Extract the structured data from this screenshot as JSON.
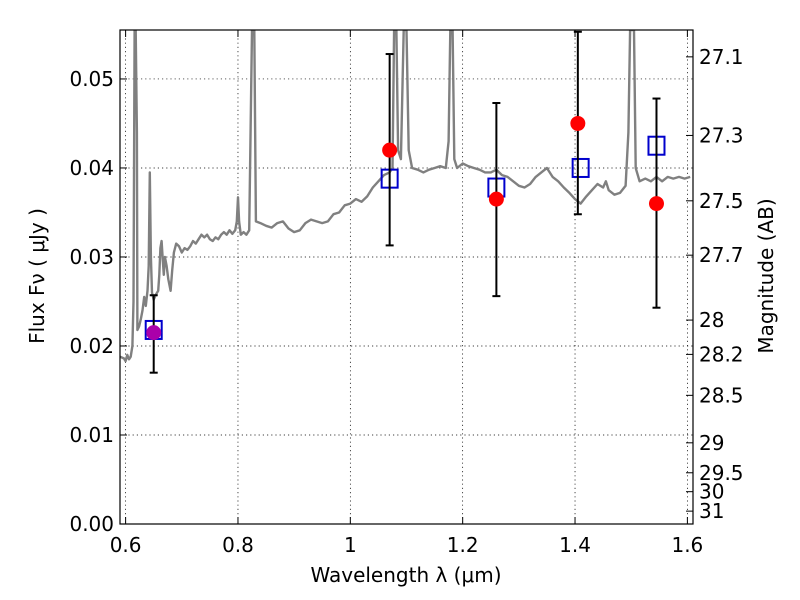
{
  "chart_data": {
    "type": "scatter",
    "title": "",
    "xlabel": "Wavelength  λ (μm)",
    "ylabel": "Flux  Fν  ( μJy )",
    "ylabel_right": "Magnitude (AB)",
    "xlim": [
      0.59,
      1.61
    ],
    "ylim": [
      0.0,
      0.0555
    ],
    "grid": true,
    "x_ticks": [
      {
        "value": 0.6,
        "label": "0.6"
      },
      {
        "value": 0.8,
        "label": "0.8"
      },
      {
        "value": 1.0,
        "label": "1"
      },
      {
        "value": 1.2,
        "label": "1.2"
      },
      {
        "value": 1.4,
        "label": "1.4"
      },
      {
        "value": 1.6,
        "label": "1.6"
      }
    ],
    "y_ticks": [
      {
        "value": 0.0,
        "label": "0.00"
      },
      {
        "value": 0.01,
        "label": "0.01"
      },
      {
        "value": 0.02,
        "label": "0.02"
      },
      {
        "value": 0.03,
        "label": "0.03"
      },
      {
        "value": 0.04,
        "label": "0.04"
      },
      {
        "value": 0.05,
        "label": "0.05"
      }
    ],
    "right_ticks": [
      {
        "mag": 27.1,
        "label": "27.1"
      },
      {
        "mag": 27.3,
        "label": "27.3"
      },
      {
        "mag": 27.5,
        "label": "27.5"
      },
      {
        "mag": 27.7,
        "label": "27.7"
      },
      {
        "mag": 28.0,
        "label": "28"
      },
      {
        "mag": 28.2,
        "label": "28.2"
      },
      {
        "mag": 28.5,
        "label": "28.5"
      },
      {
        "mag": 29.0,
        "label": "29"
      },
      {
        "mag": 29.5,
        "label": "29.5"
      },
      {
        "mag": 30.0,
        "label": "30"
      },
      {
        "mag": 31.0,
        "label": "31"
      }
    ],
    "model_spectrum": {
      "color": "#808080",
      "points": [
        [
          0.59,
          0.0188
        ],
        [
          0.597,
          0.0186
        ],
        [
          0.6,
          0.0183
        ],
        [
          0.603,
          0.019
        ],
        [
          0.606,
          0.0185
        ],
        [
          0.609,
          0.0188
        ],
        [
          0.612,
          0.02
        ],
        [
          0.614,
          0.025
        ],
        [
          0.616,
          0.0555
        ],
        [
          0.618,
          0.0555
        ],
        [
          0.62,
          0.044
        ],
        [
          0.621,
          0.0218
        ],
        [
          0.624,
          0.0222
        ],
        [
          0.627,
          0.023
        ],
        [
          0.63,
          0.024
        ],
        [
          0.633,
          0.0255
        ],
        [
          0.636,
          0.0245
        ],
        [
          0.639,
          0.0262
        ],
        [
          0.641,
          0.029
        ],
        [
          0.643,
          0.0395
        ],
        [
          0.645,
          0.03
        ],
        [
          0.647,
          0.026
        ],
        [
          0.65,
          0.0252
        ],
        [
          0.654,
          0.0258
        ],
        [
          0.658,
          0.0262
        ],
        [
          0.66,
          0.028
        ],
        [
          0.662,
          0.031
        ],
        [
          0.664,
          0.0318
        ],
        [
          0.666,
          0.0298
        ],
        [
          0.668,
          0.028
        ],
        [
          0.67,
          0.03
        ],
        [
          0.673,
          0.029
        ],
        [
          0.676,
          0.0275
        ],
        [
          0.68,
          0.0262
        ],
        [
          0.683,
          0.0285
        ],
        [
          0.686,
          0.0305
        ],
        [
          0.69,
          0.0315
        ],
        [
          0.695,
          0.0312
        ],
        [
          0.7,
          0.0305
        ],
        [
          0.705,
          0.031
        ],
        [
          0.71,
          0.0308
        ],
        [
          0.715,
          0.0312
        ],
        [
          0.72,
          0.0318
        ],
        [
          0.725,
          0.0315
        ],
        [
          0.73,
          0.032
        ],
        [
          0.735,
          0.0325
        ],
        [
          0.74,
          0.0322
        ],
        [
          0.745,
          0.0325
        ],
        [
          0.75,
          0.032
        ],
        [
          0.755,
          0.0318
        ],
        [
          0.76,
          0.0322
        ],
        [
          0.765,
          0.032
        ],
        [
          0.77,
          0.0325
        ],
        [
          0.775,
          0.0328
        ],
        [
          0.78,
          0.0325
        ],
        [
          0.785,
          0.033
        ],
        [
          0.79,
          0.0326
        ],
        [
          0.795,
          0.033
        ],
        [
          0.798,
          0.034
        ],
        [
          0.8,
          0.0367
        ],
        [
          0.802,
          0.034
        ],
        [
          0.805,
          0.0325
        ],
        [
          0.81,
          0.0328
        ],
        [
          0.815,
          0.0325
        ],
        [
          0.82,
          0.033
        ],
        [
          0.825,
          0.0555
        ],
        [
          0.829,
          0.0555
        ],
        [
          0.832,
          0.034
        ],
        [
          0.84,
          0.0338
        ],
        [
          0.85,
          0.0335
        ],
        [
          0.86,
          0.0333
        ],
        [
          0.87,
          0.0338
        ],
        [
          0.88,
          0.034
        ],
        [
          0.89,
          0.0332
        ],
        [
          0.9,
          0.0328
        ],
        [
          0.91,
          0.033
        ],
        [
          0.92,
          0.0338
        ],
        [
          0.93,
          0.0342
        ],
        [
          0.94,
          0.034
        ],
        [
          0.95,
          0.0338
        ],
        [
          0.96,
          0.034
        ],
        [
          0.97,
          0.0348
        ],
        [
          0.98,
          0.035
        ],
        [
          0.99,
          0.0358
        ],
        [
          1.0,
          0.036
        ],
        [
          1.01,
          0.0365
        ],
        [
          1.02,
          0.0362
        ],
        [
          1.03,
          0.0368
        ],
        [
          1.04,
          0.0378
        ],
        [
          1.05,
          0.0385
        ],
        [
          1.06,
          0.0392
        ],
        [
          1.07,
          0.0395
        ],
        [
          1.075,
          0.04
        ],
        [
          1.078,
          0.0555
        ],
        [
          1.082,
          0.0555
        ],
        [
          1.085,
          0.042
        ],
        [
          1.09,
          0.041
        ],
        [
          1.095,
          0.0555
        ],
        [
          1.1,
          0.0555
        ],
        [
          1.104,
          0.042
        ],
        [
          1.11,
          0.04
        ],
        [
          1.12,
          0.0398
        ],
        [
          1.13,
          0.0395
        ],
        [
          1.14,
          0.0398
        ],
        [
          1.15,
          0.04
        ],
        [
          1.16,
          0.0402
        ],
        [
          1.17,
          0.04
        ],
        [
          1.175,
          0.043
        ],
        [
          1.178,
          0.0555
        ],
        [
          1.182,
          0.0555
        ],
        [
          1.185,
          0.041
        ],
        [
          1.19,
          0.04
        ],
        [
          1.2,
          0.0405
        ],
        [
          1.21,
          0.0402
        ],
        [
          1.22,
          0.04
        ],
        [
          1.23,
          0.0398
        ],
        [
          1.24,
          0.0395
        ],
        [
          1.25,
          0.0395
        ],
        [
          1.26,
          0.0398
        ],
        [
          1.27,
          0.0392
        ],
        [
          1.28,
          0.039
        ],
        [
          1.29,
          0.0385
        ],
        [
          1.3,
          0.038
        ],
        [
          1.31,
          0.0378
        ],
        [
          1.32,
          0.0382
        ],
        [
          1.33,
          0.039
        ],
        [
          1.34,
          0.0395
        ],
        [
          1.35,
          0.04
        ],
        [
          1.36,
          0.039
        ],
        [
          1.37,
          0.0385
        ],
        [
          1.38,
          0.0378
        ],
        [
          1.39,
          0.0372
        ],
        [
          1.4,
          0.0365
        ],
        [
          1.41,
          0.036
        ],
        [
          1.42,
          0.0368
        ],
        [
          1.43,
          0.0375
        ],
        [
          1.44,
          0.0382
        ],
        [
          1.45,
          0.0378
        ],
        [
          1.455,
          0.0385
        ],
        [
          1.46,
          0.0375
        ],
        [
          1.47,
          0.037
        ],
        [
          1.48,
          0.0372
        ],
        [
          1.49,
          0.038
        ],
        [
          1.495,
          0.044
        ],
        [
          1.498,
          0.0555
        ],
        [
          1.505,
          0.0555
        ],
        [
          1.508,
          0.04
        ],
        [
          1.515,
          0.0385
        ],
        [
          1.525,
          0.0388
        ],
        [
          1.535,
          0.0385
        ],
        [
          1.545,
          0.039
        ],
        [
          1.555,
          0.0385
        ],
        [
          1.565,
          0.039
        ],
        [
          1.575,
          0.0388
        ],
        [
          1.585,
          0.039
        ],
        [
          1.595,
          0.0388
        ],
        [
          1.605,
          0.039
        ]
      ]
    },
    "series": [
      {
        "marker": "open-square",
        "color": "#0000cc",
        "points": [
          {
            "x": 0.65,
            "y": 0.0218
          },
          {
            "x": 1.07,
            "y": 0.0388
          },
          {
            "x": 1.26,
            "y": 0.0378
          },
          {
            "x": 1.41,
            "y": 0.04
          },
          {
            "x": 1.545,
            "y": 0.0425
          }
        ]
      },
      {
        "marker": "filled-circle",
        "color": "#ff0000",
        "points": [
          {
            "x": 0.65,
            "y": 0.0215,
            "yerr": [
              0.017,
              0.0257
            ],
            "color": "#aa00aa"
          },
          {
            "x": 1.07,
            "y": 0.042,
            "yerr": [
              0.0313,
              0.0528
            ]
          },
          {
            "x": 1.26,
            "y": 0.0365,
            "yerr": [
              0.0256,
              0.0473
            ]
          },
          {
            "x": 1.405,
            "y": 0.045,
            "yerr": [
              0.0348,
              0.0553
            ]
          },
          {
            "x": 1.545,
            "y": 0.036,
            "yerr": [
              0.0243,
              0.0478
            ]
          }
        ]
      }
    ]
  }
}
